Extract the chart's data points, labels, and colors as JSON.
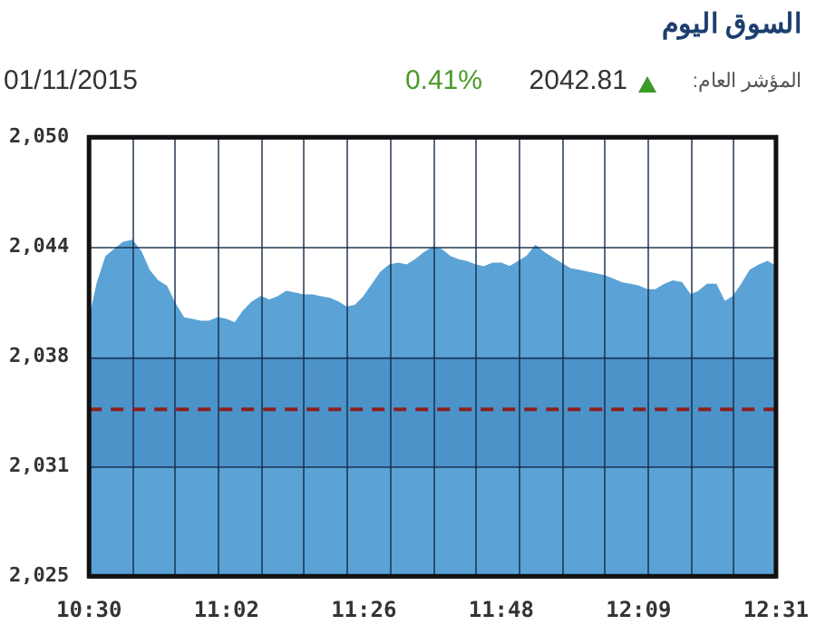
{
  "chart_data": {
    "type": "area",
    "title": "السوق اليوم",
    "subtitle": "المؤشر العام:",
    "annotations": [
      "2042.81",
      "0.41%",
      "01/11/2015"
    ],
    "categories": [
      "10:30",
      null,
      null,
      null,
      null,
      null,
      null,
      null,
      null,
      null,
      null,
      null,
      null,
      null,
      null,
      null,
      "11:02",
      null,
      null,
      null,
      null,
      null,
      null,
      null,
      null,
      null,
      null,
      null,
      null,
      null,
      null,
      null,
      "11:26",
      null,
      null,
      null,
      null,
      null,
      null,
      null,
      null,
      null,
      null,
      null,
      null,
      null,
      null,
      null,
      "11:48",
      null,
      null,
      null,
      null,
      null,
      null,
      null,
      null,
      null,
      null,
      null,
      null,
      null,
      null,
      null,
      "12:09",
      null,
      null,
      null,
      null,
      null,
      null,
      null,
      null,
      null,
      null,
      null,
      null,
      null,
      null,
      null,
      "12:31"
    ],
    "series": [
      {
        "color": "#5ba3d6",
        "values": [
          2039.5,
          2041.7,
          2043.2,
          2043.6,
          2044.0,
          2044.1,
          2043.5,
          2042.4,
          2041.8,
          2041.5,
          2040.5,
          2039.7,
          2039.6,
          2039.5,
          2039.5,
          2039.7,
          2039.6,
          2039.4,
          2040.1,
          2040.6,
          2040.9,
          2040.7,
          2040.9,
          2041.2,
          2041.1,
          2041.0,
          2041.0,
          2040.9,
          2040.8,
          2040.6,
          2040.3,
          2040.4,
          2040.9,
          2041.6,
          2042.3,
          2042.7,
          2042.8,
          2042.7,
          2043.0,
          2043.4,
          2043.7,
          2043.6,
          2043.2,
          2043.0,
          2042.9,
          2042.7,
          2042.6,
          2042.8,
          2042.8,
          2042.6,
          2042.9,
          2043.2,
          2043.8,
          2043.4,
          2043.1,
          2042.8,
          2042.5,
          2042.4,
          2042.3,
          2042.2,
          2042.1,
          2041.9,
          2041.7,
          2041.6,
          2041.5,
          2041.3,
          2041.3,
          2041.6,
          2041.8,
          2041.7,
          2041.0,
          2041.2,
          2041.6,
          2041.6,
          2040.6,
          2040.9,
          2041.6,
          2042.4,
          2042.7,
          2042.9,
          2042.6
        ]
      }
    ],
    "ylim": [
      2025,
      2050
    ],
    "yticks": [
      {
        "value": 2025,
        "label": "2,025"
      },
      {
        "value": 2031.25,
        "label": "2,031"
      },
      {
        "value": 2037.5,
        "label": "2,038"
      },
      {
        "value": 2043.75,
        "label": "2,044"
      },
      {
        "value": 2050,
        "label": "2,050"
      }
    ],
    "ref_lines": [
      {
        "axis": "y",
        "value": 2034.5,
        "color": "#8b1f1f",
        "line_style": "dashed"
      }
    ],
    "bands": [
      {
        "axis": "y",
        "from": 2031.25,
        "to": 2037.5,
        "color": "#4b93c8"
      }
    ],
    "grid": true,
    "legend": false
  }
}
